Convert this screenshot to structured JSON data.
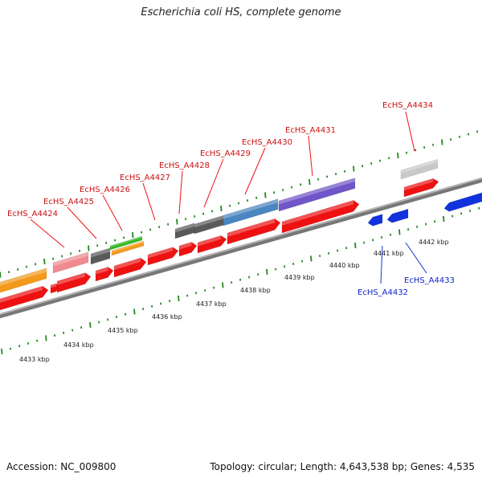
{
  "title": "Escherichia coli HS, complete genome",
  "footer": {
    "accession": "Accession: NC_009800",
    "summary": "Topology: circular; Length: 4,643,538 bp; Genes: 4,535"
  },
  "colors": {
    "red": "#ee1111",
    "blue": "#1133dd",
    "orange": "#f39a1a",
    "pink": "#f08a90",
    "darkgray": "#5a5a5a",
    "lightgray": "#c8c8c8",
    "steelblue": "#4a86c0",
    "purple": "#6f55c8",
    "green": "#33bb22",
    "tick": "#228822"
  },
  "kbp_labels": [
    "4433 kbp",
    "4434 kbp",
    "4435 kbp",
    "4436 kbp",
    "4437 kbp",
    "4438 kbp",
    "4439 kbp",
    "4440 kbp",
    "4441 kbp",
    "4442 kbp"
  ],
  "forward_genes": [
    "EcHS_A4424",
    "EcHS_A4425",
    "EcHS_A4426",
    "EcHS_A4427",
    "EcHS_A4428",
    "EcHS_A4429",
    "EcHS_A4430",
    "EcHS_A4431",
    "EcHS_A4434"
  ],
  "reverse_genes": [
    "EcHS_A4432",
    "EcHS_A4433"
  ]
}
